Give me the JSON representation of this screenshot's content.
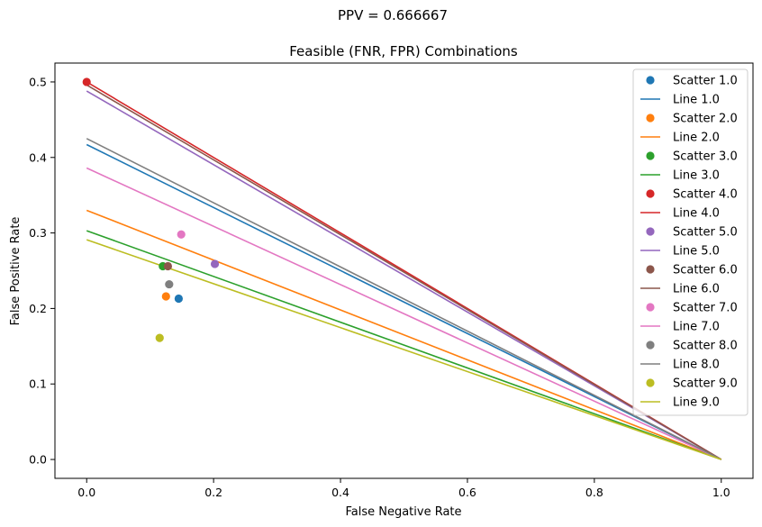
{
  "chart_data": {
    "type": "scatter",
    "suptitle": "PPV = 0.666667",
    "title": "Feasible (FNR, FPR) Combinations",
    "xlabel": "False Negative Rate",
    "ylabel": "False Positive Rate",
    "xlim": [
      -0.05,
      1.05
    ],
    "ylim": [
      -0.025,
      0.525
    ],
    "xticks": [
      "0.0",
      "0.2",
      "0.4",
      "0.6",
      "0.8",
      "1.0"
    ],
    "yticks": [
      "0.0",
      "0.1",
      "0.2",
      "0.3",
      "0.4",
      "0.5"
    ],
    "grid": false,
    "legend_position": "top-right",
    "series": [
      {
        "id": "1.0",
        "scatter_name": "Scatter 1.0",
        "line_name": "Line 1.0",
        "color": "#1f77b4",
        "point": [
          0.145,
          0.213
        ],
        "line_y0": 0.417
      },
      {
        "id": "2.0",
        "scatter_name": "Scatter 2.0",
        "line_name": "Line 2.0",
        "color": "#ff7f0e",
        "point": [
          0.125,
          0.216
        ],
        "line_y0": 0.33
      },
      {
        "id": "3.0",
        "scatter_name": "Scatter 3.0",
        "line_name": "Line 3.0",
        "color": "#2ca02c",
        "point": [
          0.12,
          0.256
        ],
        "line_y0": 0.303
      },
      {
        "id": "4.0",
        "scatter_name": "Scatter 4.0",
        "line_name": "Line 4.0",
        "color": "#d62728",
        "point": [
          0.0,
          0.5
        ],
        "line_y0": 0.5
      },
      {
        "id": "5.0",
        "scatter_name": "Scatter 5.0",
        "line_name": "Line 5.0",
        "color": "#9467bd",
        "point": [
          0.202,
          0.259
        ],
        "line_y0": 0.488
      },
      {
        "id": "6.0",
        "scatter_name": "Scatter 6.0",
        "line_name": "Line 6.0",
        "color": "#8c564b",
        "point": [
          0.128,
          0.256
        ],
        "line_y0": 0.496
      },
      {
        "id": "7.0",
        "scatter_name": "Scatter 7.0",
        "line_name": "Line 7.0",
        "color": "#e377c2",
        "point": [
          0.149,
          0.298
        ],
        "line_y0": 0.386
      },
      {
        "id": "8.0",
        "scatter_name": "Scatter 8.0",
        "line_name": "Line 8.0",
        "color": "#7f7f7f",
        "point": [
          0.13,
          0.232
        ],
        "line_y0": 0.425
      },
      {
        "id": "9.0",
        "scatter_name": "Scatter 9.0",
        "line_name": "Line 9.0",
        "color": "#bcbd22",
        "point": [
          0.115,
          0.161
        ],
        "line_y0": 0.291
      }
    ]
  }
}
